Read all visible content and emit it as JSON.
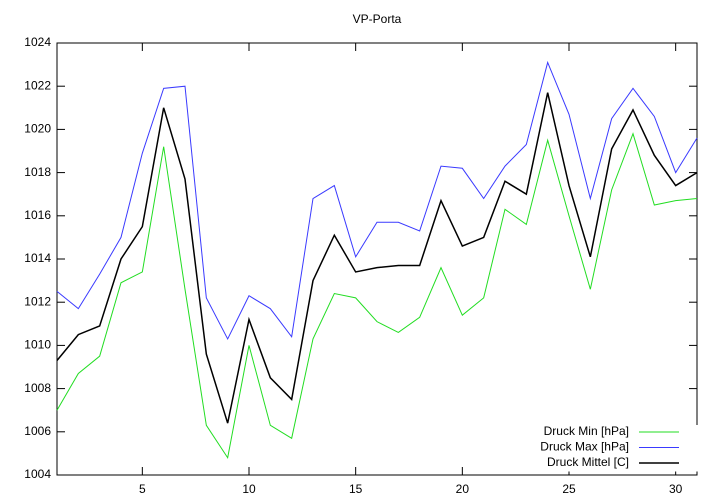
{
  "chart_data": {
    "type": "line",
    "title": "VP-Porta",
    "x": [
      1,
      2,
      3,
      4,
      5,
      6,
      7,
      8,
      9,
      10,
      11,
      12,
      13,
      14,
      15,
      16,
      17,
      18,
      19,
      20,
      21,
      22,
      23,
      24,
      25,
      26,
      27,
      28,
      29,
      30,
      31
    ],
    "xlim": [
      1,
      31
    ],
    "xticks": [
      5,
      10,
      15,
      20,
      25,
      30
    ],
    "ylim": [
      1004,
      1024
    ],
    "yticks": [
      1004,
      1006,
      1008,
      1010,
      1012,
      1014,
      1016,
      1018,
      1020,
      1022,
      1024
    ],
    "legend": "lower right",
    "series": [
      {
        "name": "Druck Min [hPa]",
        "color": "#22dd22",
        "values": [
          1007.0,
          1008.7,
          1009.5,
          1012.9,
          1013.4,
          1019.2,
          1012.6,
          1006.3,
          1004.8,
          1010.0,
          1006.3,
          1005.7,
          1010.3,
          1012.4,
          1012.2,
          1011.1,
          1010.6,
          1011.3,
          1013.6,
          1011.4,
          1012.2,
          1016.3,
          1015.6,
          1019.5,
          1016.0,
          1012.6,
          1017.2,
          1019.8,
          1016.5,
          1016.7,
          1016.8
        ]
      },
      {
        "name": "Druck Max [hPa]",
        "color": "#3a3aff",
        "values": [
          1012.5,
          1011.7,
          1013.3,
          1015.0,
          1018.9,
          1021.9,
          1022.0,
          1012.2,
          1010.3,
          1012.3,
          1011.7,
          1010.4,
          1016.8,
          1017.4,
          1014.1,
          1015.7,
          1015.7,
          1015.3,
          1018.3,
          1018.2,
          1016.8,
          1018.3,
          1019.3,
          1023.1,
          1020.7,
          1016.8,
          1020.5,
          1021.9,
          1020.6,
          1018.0,
          1019.6
        ]
      },
      {
        "name": "Druck Mittel [C]",
        "color": "#000000",
        "values": [
          1009.3,
          1010.5,
          1010.9,
          1014.0,
          1015.5,
          1021.0,
          1017.7,
          1009.6,
          1006.4,
          1011.2,
          1008.5,
          1007.5,
          1013.0,
          1015.1,
          1013.4,
          1013.6,
          1013.7,
          1013.7,
          1016.7,
          1014.6,
          1015.0,
          1017.6,
          1017.0,
          1021.7,
          1017.4,
          1014.1,
          1019.1,
          1020.9,
          1018.8,
          1017.4,
          1018.0
        ]
      }
    ]
  }
}
